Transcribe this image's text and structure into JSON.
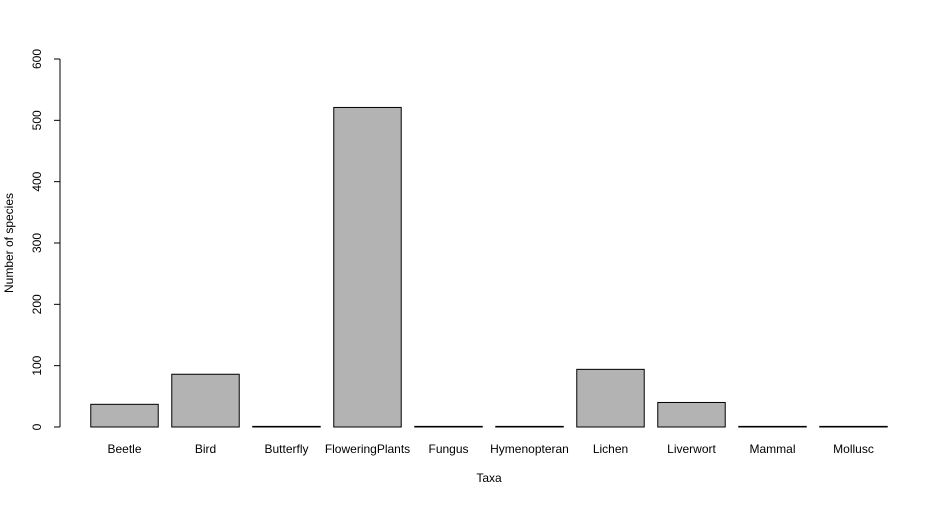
{
  "chart_data": {
    "type": "bar",
    "title": "",
    "xlabel": "Taxa",
    "ylabel": "Number of species",
    "ylim": [
      0,
      600
    ],
    "yticks": [
      0,
      100,
      200,
      300,
      400,
      500,
      600
    ],
    "grid": false,
    "categories": [
      "Beetle",
      "Bird",
      "Butterfly",
      "FloweringPlants",
      "Fungus",
      "Hymenopteran",
      "Lichen",
      "Liverwort",
      "Mammal",
      "Mollusc"
    ],
    "values": [
      37,
      86,
      1,
      521,
      1,
      1,
      94,
      40,
      1,
      1
    ],
    "colors": {
      "bar_fill": "#b3b3b3",
      "bar_stroke": "#000000"
    }
  }
}
